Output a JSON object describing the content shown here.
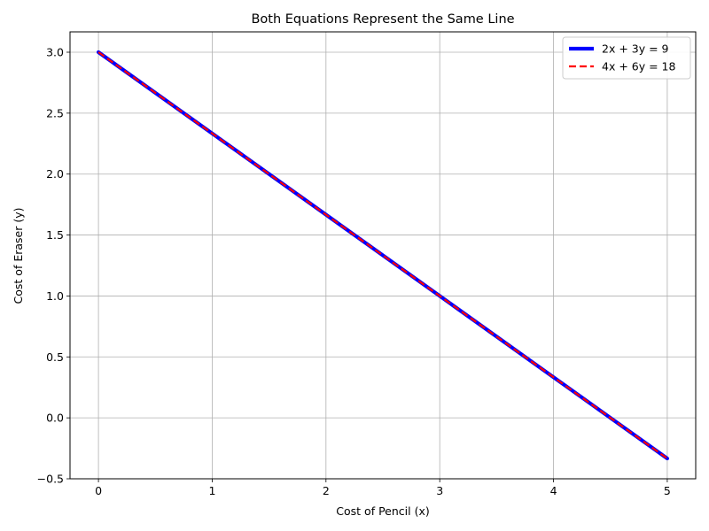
{
  "chart_data": {
    "type": "line",
    "title": "Both Equations Represent the Same Line",
    "xlabel": "Cost of Pencil (x)",
    "ylabel": "Cost of Eraser (y)",
    "xlim": [
      -0.25,
      5.25
    ],
    "ylim": [
      -0.5,
      3.167
    ],
    "xticks": [
      0,
      1,
      2,
      3,
      4,
      5
    ],
    "yticks": [
      -0.5,
      0.0,
      0.5,
      1.0,
      1.5,
      2.0,
      2.5,
      3.0
    ],
    "xtick_labels": [
      "0",
      "1",
      "2",
      "3",
      "4",
      "5"
    ],
    "ytick_labels": [
      "−0.5",
      "0.0",
      "0.5",
      "1.0",
      "1.5",
      "2.0",
      "2.5",
      "3.0"
    ],
    "grid": true,
    "legend_position": "top-right",
    "series": [
      {
        "name": "2x + 3y = 9",
        "color": "#0000ff",
        "style": "solid",
        "x": [
          0,
          5
        ],
        "y": [
          3.0,
          -0.3333
        ]
      },
      {
        "name": "4x + 6y = 18",
        "color": "#ff0000",
        "style": "dashed",
        "x": [
          0,
          5
        ],
        "y": [
          3.0,
          -0.3333
        ]
      }
    ]
  }
}
